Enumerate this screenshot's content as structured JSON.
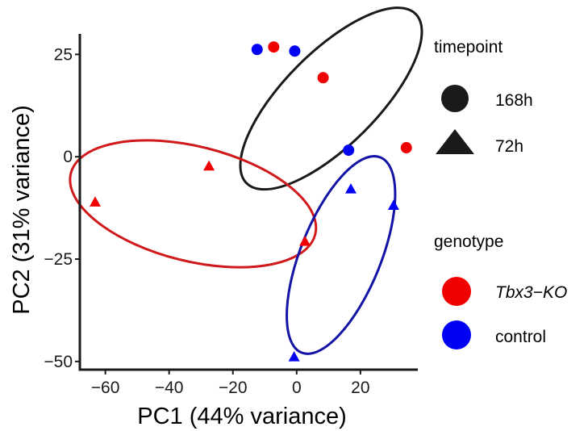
{
  "chart_data": {
    "type": "scatter",
    "xlabel": "PC1 (44% variance)",
    "ylabel": "PC2 (31% variance)",
    "xlim": [
      -68,
      38
    ],
    "ylim": [
      -52,
      30
    ],
    "x_ticks": [
      -60,
      -40,
      -20,
      0,
      20
    ],
    "x_tick_labels": [
      "−60",
      "−40",
      "−20",
      "0",
      "20"
    ],
    "y_ticks": [
      25,
      0,
      -25,
      -50
    ],
    "y_tick_labels": [
      "25",
      "0",
      "−25",
      "−50"
    ],
    "grid": false,
    "points": [
      {
        "x": -12.4,
        "y": 26.2,
        "genotype": "control",
        "timepoint": "168h"
      },
      {
        "x": -7.2,
        "y": 26.8,
        "genotype": "Tbx3−KO",
        "timepoint": "168h"
      },
      {
        "x": -0.6,
        "y": 25.8,
        "genotype": "control",
        "timepoint": "168h"
      },
      {
        "x": 8.3,
        "y": 19.3,
        "genotype": "Tbx3−KO",
        "timepoint": "168h"
      },
      {
        "x": 16.3,
        "y": 1.6,
        "genotype": "control",
        "timepoint": "168h"
      },
      {
        "x": 34.4,
        "y": 2.2,
        "genotype": "Tbx3−KO",
        "timepoint": "168h"
      },
      {
        "x": -63.2,
        "y": -11.1,
        "genotype": "Tbx3−KO",
        "timepoint": "72h"
      },
      {
        "x": -27.5,
        "y": -2.3,
        "genotype": "Tbx3−KO",
        "timepoint": "72h"
      },
      {
        "x": 2.6,
        "y": -20.7,
        "genotype": "Tbx3−KO",
        "timepoint": "72h"
      },
      {
        "x": 17.0,
        "y": -7.9,
        "genotype": "control",
        "timepoint": "72h"
      },
      {
        "x": 30.4,
        "y": -11.9,
        "genotype": "control",
        "timepoint": "72h"
      },
      {
        "x": -0.8,
        "y": -48.9,
        "genotype": "control",
        "timepoint": "72h"
      }
    ],
    "ellipses": [
      {
        "group": "168h",
        "color": "#1a1a1a",
        "cx": 10.8,
        "cy": 14.2,
        "rx": 37.5,
        "ry": 11.4,
        "angle_deg": -45
      },
      {
        "group": "Tbx3−KO",
        "color": "#d0191b",
        "cx": -32.5,
        "cy": -11.5,
        "rx": 39.5,
        "ry": 14.0,
        "angle_deg": 14
      },
      {
        "group": "control",
        "color": "#1313a6",
        "cx": 13.9,
        "cy": -24.0,
        "rx": 33.0,
        "ry": 9.8,
        "angle_deg": -68
      }
    ],
    "legend": {
      "placement": "right",
      "timepoint": {
        "title": "timepoint",
        "entries": [
          {
            "label": "168h",
            "shape": "circle"
          },
          {
            "label": "72h",
            "shape": "triangle"
          }
        ]
      },
      "genotype": {
        "title": "genotype",
        "entries": [
          {
            "label": "Tbx3−KO",
            "color": "#f00000"
          },
          {
            "label": "control",
            "color": "#0000f5"
          }
        ]
      }
    },
    "colors": {
      "Tbx3−KO": "#f00000",
      "control": "#0000f5",
      "legend_shape": "#1a1a1a"
    }
  }
}
